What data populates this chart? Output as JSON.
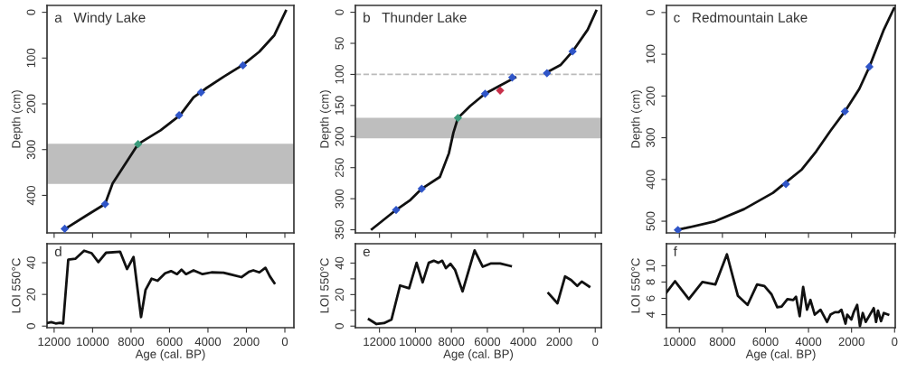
{
  "chart_data": [
    {
      "type": "line",
      "title": "a   Windy Lake",
      "ylabel": "Depth (cm)",
      "xlim": [
        12370,
        -470
      ],
      "xticks": [
        12000,
        10000,
        8000,
        6000,
        4000,
        2000,
        0
      ],
      "ylim": [
        482,
        -15
      ],
      "yticks": [
        0,
        100,
        200,
        300,
        400
      ],
      "tick_labels": "y",
      "bands": [
        {
          "axis": "y",
          "from": 287,
          "to": 375,
          "color": "#bebebe"
        }
      ],
      "series": [
        {
          "color": "#111111",
          "x": [
            -50,
            545,
            1325,
            2180,
            3190,
            4130,
            4750,
            5450,
            6465,
            7635,
            8960,
            9350,
            10360,
            11450
          ],
          "values": [
            -3,
            50,
            86,
            115,
            141,
            167,
            186,
            225,
            258,
            288,
            374,
            419,
            445,
            474
          ]
        },
        {
          "type": "scatter",
          "marker": "diamond",
          "x": [
            2180,
            4360,
            5500,
            7635,
            9350,
            11450
          ],
          "values": [
            116,
            175,
            225,
            288,
            419,
            473
          ],
          "colors": [
            "#2f55c8",
            "#2f55c8",
            "#2f55c8",
            "#3a9a7a",
            "#2f55c8",
            "#2f55c8"
          ]
        }
      ]
    },
    {
      "type": "line",
      "title": "b   Thunder Lake",
      "ylabel": "Depth (cm)",
      "xlim": [
        13340,
        -340
      ],
      "xticks": [
        12000,
        10000,
        8000,
        6000,
        4000,
        2000,
        0
      ],
      "ylim": [
        355,
        -11
      ],
      "yticks": [
        0,
        50,
        100,
        150,
        200,
        250,
        300,
        350
      ],
      "tick_labels": "y",
      "bands": [
        {
          "axis": "y",
          "from": 170,
          "to": 203,
          "color": "#bebebe"
        }
      ],
      "ref_lines": [
        {
          "axis": "y",
          "value": 100,
          "color": "#bbbbbb",
          "line_style": "dashed"
        }
      ],
      "series": [
        {
          "color": "#111111",
          "x": [
            -50,
            420,
            1260,
            1930,
            2770,
            3600,
            4450,
            5290,
            6125,
            6960,
            7635,
            7890,
            8140,
            8640,
            9650,
            10320,
            11075,
            12420
          ],
          "values": [
            -2,
            28,
            63,
            85,
            98,
            null,
            105,
            118,
            131,
            151,
            170,
            194,
            227,
            265,
            284,
            303,
            318,
            349
          ]
        },
        {
          "type": "scatter",
          "marker": "diamond",
          "x": [
            1260,
            2685,
            4615,
            5290,
            6125,
            7635,
            9650,
            11075
          ],
          "values": [
            63,
            98,
            105,
            126,
            131,
            170,
            284,
            318
          ],
          "colors": [
            "#2f55c8",
            "#2f55c8",
            "#2f55c8",
            "#c8304a",
            "#2f55c8",
            "#3a9a7a",
            "#2f55c8",
            "#2f55c8"
          ]
        }
      ]
    },
    {
      "type": "line",
      "title": "c   Redmountain Lake",
      "ylabel": "Depth (cm)",
      "xlim": [
        10600,
        -30
      ],
      "xticks": [
        10000,
        8000,
        6000,
        4000,
        2000,
        0
      ],
      "ylim": [
        528,
        -17
      ],
      "yticks": [
        0,
        100,
        200,
        300,
        400,
        500
      ],
      "tick_labels": "y",
      "series": [
        {
          "color": "#111111",
          "x": [
            30,
            500,
            1170,
            1640,
            2310,
            2975,
            3645,
            4310,
            4980,
            5650,
            6990,
            8330,
            9665,
            10130
          ],
          "values": [
            -10,
            41,
            130,
            183,
            237,
            283,
            333,
            376,
            404,
            432,
            471,
            500,
            516,
            521
          ]
        },
        {
          "type": "scatter",
          "marker": "diamond",
          "x": [
            1170,
            2310,
            5050,
            10070
          ],
          "values": [
            130,
            237,
            411,
            521
          ],
          "colors": [
            "#2f55c8",
            "#2f55c8",
            "#2f55c8",
            "#2f55c8"
          ]
        }
      ]
    },
    {
      "type": "line",
      "title": "d",
      "ylabel": "LOI 550°C",
      "xlabel": "Age (cal. BP)",
      "xlim": [
        12370,
        -470
      ],
      "xticks": [
        12000,
        10000,
        8000,
        6000,
        4000,
        2000,
        0
      ],
      "ylim": [
        -1,
        52
      ],
      "yticks": [
        0,
        20,
        40
      ],
      "series": [
        {
          "color": "#111111",
          "x": [
            12350,
            12150,
            11920,
            11690,
            11530,
            11265,
            10900,
            10440,
            10050,
            9700,
            9300,
            8570,
            8210,
            7870,
            7480,
            7245,
            6930,
            6620,
            6230,
            5920,
            5610,
            5375,
            5140,
            4750,
            4280,
            3815,
            3190,
            2260,
            1870,
            1640,
            1325,
            1010,
            780,
            545
          ],
          "values": [
            2,
            2.5,
            1.7,
            2,
            1.7,
            42,
            42.5,
            47.6,
            46,
            40.4,
            46.3,
            47,
            36,
            43.6,
            5.7,
            22.9,
            29.9,
            28.6,
            33.3,
            34.7,
            32.8,
            35.6,
            32.8,
            35.2,
            32.8,
            33.9,
            33.7,
            30.9,
            34.3,
            35.2,
            33.9,
            36.8,
            31.4,
            27.2
          ]
        }
      ]
    },
    {
      "type": "line",
      "title": "e",
      "ylabel": "LOI 550°C",
      "xlabel": "Age (cal. BP)",
      "xlim": [
        13340,
        -340
      ],
      "xticks": [
        12000,
        10000,
        8000,
        6000,
        4000,
        2000,
        0
      ],
      "ylim": [
        -1,
        52.3
      ],
      "yticks": [
        0,
        {
          "value": 10,
          "label": null
        },
        20,
        {
          "value": 30,
          "label": null
        },
        40
      ],
      "series": [
        {
          "color": "#111111",
          "x": [
            12585,
            12165,
            11745,
            11330,
            10855,
            10350,
            9935,
            9600,
            9260,
            8980,
            8725,
            8510,
            8305,
            8055,
            7800,
            7380,
            6710,
            6260,
            5790,
            5285,
            4700,
            3650,
            2600,
            2100,
            1680,
            1340,
            1000,
            750,
            335
          ],
          "values": [
            4.3,
            1.3,
            1.9,
            4.2,
            25.8,
            24,
            40.2,
            27.7,
            40.2,
            41.5,
            40.2,
            41.5,
            36.8,
            39.6,
            35.8,
            22,
            48.1,
            37.7,
            39.8,
            39.8,
            38.1,
            null,
            20.8,
            14.5,
            31.5,
            29.2,
            25.5,
            28.3,
            25.1
          ]
        }
      ]
    },
    {
      "type": "line",
      "title": "f",
      "ylabel": "LOI 550°C",
      "xlabel": "Age (cal. BP)",
      "xlim": [
        10600,
        -30
      ],
      "xticks": [
        10000,
        8000,
        6000,
        4000,
        2000,
        0
      ],
      "ylim": [
        2.4,
        12.7
      ],
      "yticks": [
        4,
        6,
        8,
        10
      ],
      "series": [
        {
          "color": "#111111",
          "x": [
            10600,
            10200,
            9560,
            8930,
            8330,
            7790,
            7280,
            6830,
            6390,
            6050,
            5720,
            5450,
            5250,
            4980,
            4710,
            4580,
            4410,
            4250,
            4070,
            3910,
            3710,
            3440,
            3140,
            2980,
            2775,
            2600,
            2470,
            2280,
            2200,
            2010,
            1900,
            1740,
            1610,
            1480,
            1340,
            970,
            860,
            770,
            630,
            500,
            300
          ],
          "values": [
            6.7,
            8.1,
            5.9,
            8.0,
            7.7,
            11.4,
            6.3,
            5.2,
            7.7,
            7.5,
            6.5,
            4.9,
            5.0,
            5.9,
            5.8,
            6.2,
            3.8,
            7.4,
            4.6,
            5.8,
            4.0,
            4.6,
            3.1,
            4.0,
            4.3,
            4.3,
            4.6,
            2.9,
            4.0,
            3.4,
            4.3,
            5.2,
            2.6,
            4.2,
            3.1,
            4.8,
            3.1,
            4.5,
            3.2,
            4.2,
            4.0
          ]
        }
      ]
    }
  ]
}
